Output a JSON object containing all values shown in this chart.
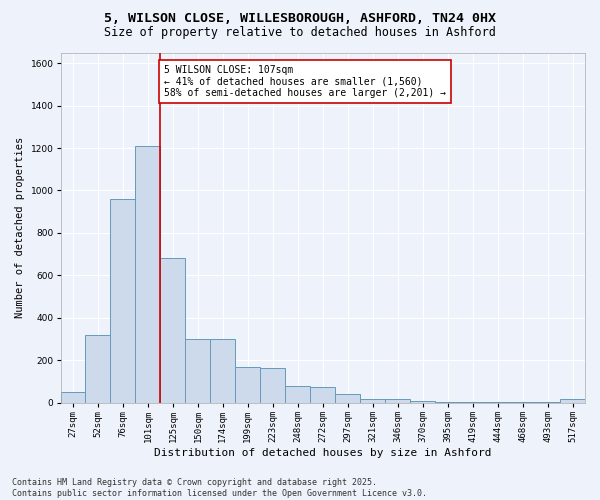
{
  "title_line1": "5, WILSON CLOSE, WILLESBOROUGH, ASHFORD, TN24 0HX",
  "title_line2": "Size of property relative to detached houses in Ashford",
  "xlabel": "Distribution of detached houses by size in Ashford",
  "ylabel": "Number of detached properties",
  "bar_color": "#ccdaeb",
  "bar_edge_color": "#6699bb",
  "background_color": "#eef2fa",
  "fig_background_color": "#eef2fa",
  "grid_color": "#ffffff",
  "categories": [
    "27sqm",
    "52sqm",
    "76sqm",
    "101sqm",
    "125sqm",
    "150sqm",
    "174sqm",
    "199sqm",
    "223sqm",
    "248sqm",
    "272sqm",
    "297sqm",
    "321sqm",
    "346sqm",
    "370sqm",
    "395sqm",
    "419sqm",
    "444sqm",
    "468sqm",
    "493sqm",
    "517sqm"
  ],
  "values": [
    50,
    320,
    960,
    1210,
    680,
    300,
    300,
    170,
    165,
    80,
    75,
    40,
    20,
    18,
    8,
    5,
    3,
    2,
    2,
    2,
    18
  ],
  "vline_x": 3.5,
  "vline_color": "#cc0000",
  "annotation_text": "5 WILSON CLOSE: 107sqm\n← 41% of detached houses are smaller (1,560)\n58% of semi-detached houses are larger (2,201) →",
  "annotation_box_color": "#ffffff",
  "annotation_box_edge": "#cc0000",
  "ylim": [
    0,
    1650
  ],
  "yticks": [
    0,
    200,
    400,
    600,
    800,
    1000,
    1200,
    1400,
    1600
  ],
  "footnote": "Contains HM Land Registry data © Crown copyright and database right 2025.\nContains public sector information licensed under the Open Government Licence v3.0.",
  "title_fontsize": 9.5,
  "subtitle_fontsize": 8.5,
  "axis_label_fontsize": 8,
  "tick_fontsize": 6.5,
  "annotation_fontsize": 7,
  "ylabel_fontsize": 7.5
}
